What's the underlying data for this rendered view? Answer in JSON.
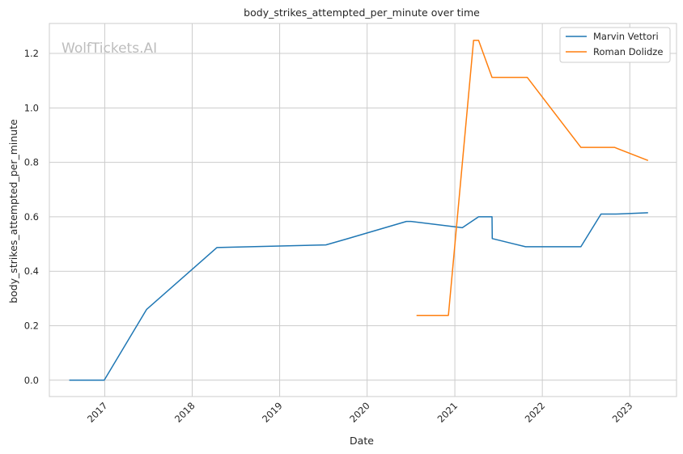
{
  "chart_data": {
    "type": "line",
    "title": "body_strikes_attempted_per_minute over time",
    "xlabel": "Date",
    "ylabel": "body_strikes_attempted_per_minute",
    "watermark": "WolfTickets.AI",
    "xlim": [
      "2016-05-15",
      "2023-07-15"
    ],
    "ylim": [
      -0.06,
      1.31
    ],
    "x_ticks": [
      "2017",
      "2018",
      "2019",
      "2020",
      "2021",
      "2022",
      "2023"
    ],
    "y_ticks": [
      "0.0",
      "0.2",
      "0.4",
      "0.6",
      "0.8",
      "1.0",
      "1.2"
    ],
    "grid": true,
    "legend_position": "top-right",
    "colors": {
      "series_0": "#1f77b4",
      "series_1": "#ff7f0e",
      "grid": "#cccccc",
      "frame": "#cccccc"
    },
    "series": [
      {
        "name": "Marvin Vettori",
        "x": [
          "2016-08-06",
          "2016-12-30",
          "2017-06-25",
          "2018-04-14",
          "2019-07-13",
          "2019-10-05",
          "2020-06-13",
          "2020-07-01",
          "2021-02-01",
          "2021-04-10",
          "2021-06-05",
          "2021-06-06",
          "2021-10-23",
          "2022-06-11",
          "2022-09-03",
          "2022-11-05",
          "2023-03-18"
        ],
        "values": [
          0.0,
          0.0,
          0.26,
          0.487,
          0.497,
          0.518,
          0.583,
          0.583,
          0.56,
          0.6,
          0.6,
          0.52,
          0.49,
          0.49,
          0.61,
          0.61,
          0.615
        ]
      },
      {
        "name": "Roman Dolidze",
        "x": [
          "2020-07-25",
          "2020-12-05",
          "2021-03-20",
          "2021-04-10",
          "2021-06-05",
          "2021-10-30",
          "2022-06-11",
          "2022-10-29",
          "2023-03-18"
        ],
        "values": [
          0.238,
          0.238,
          1.248,
          1.248,
          1.112,
          1.112,
          0.855,
          0.855,
          0.807
        ]
      }
    ]
  }
}
